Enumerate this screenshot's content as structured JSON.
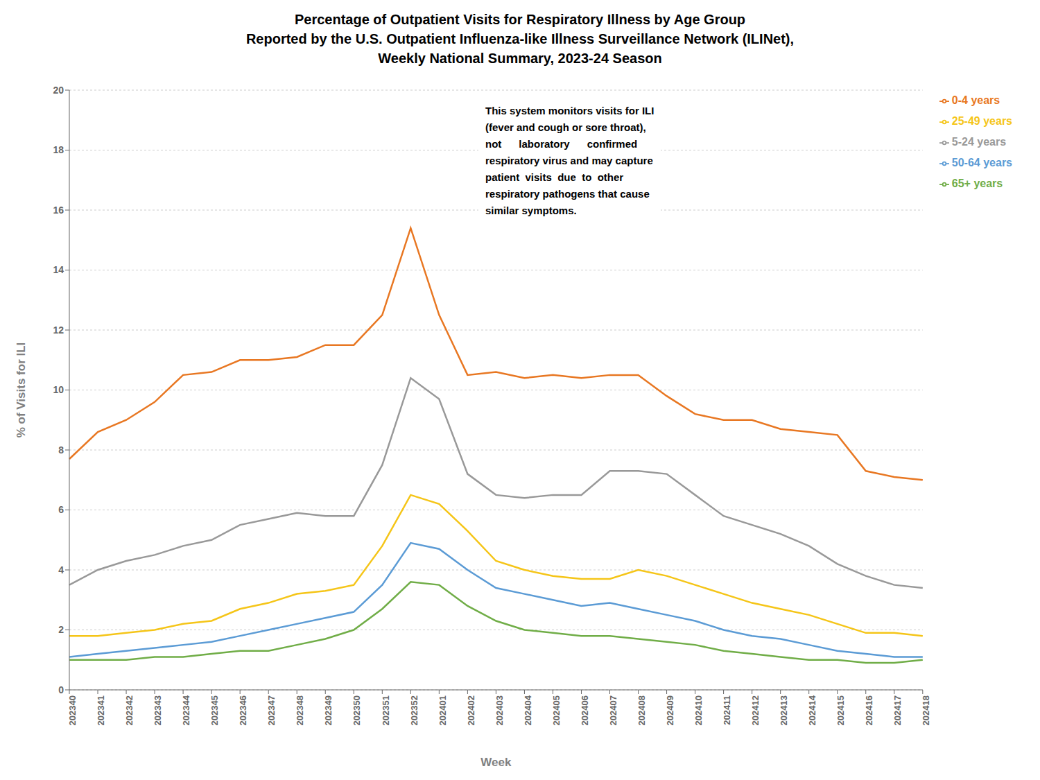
{
  "chart_data": {
    "type": "line",
    "title": [
      "Percentage of Outpatient Visits for Respiratory Illness by Age Group",
      "Reported by the U.S. Outpatient Influenza-like Illness Surveillance Network (ILINet),",
      "Weekly National Summary, 2023-24 Season"
    ],
    "xlabel": "Week",
    "ylabel": "% of Visits for ILI",
    "categories": [
      "202340",
      "202341",
      "202342",
      "202343",
      "202344",
      "202345",
      "202346",
      "202347",
      "202348",
      "202349",
      "202350",
      "202351",
      "202352",
      "202401",
      "202402",
      "202403",
      "202404",
      "202405",
      "202406",
      "202407",
      "202408",
      "202409",
      "202410",
      "202411",
      "202412",
      "202413",
      "202414",
      "202415",
      "202416",
      "202417",
      "202418"
    ],
    "series": [
      {
        "name": "0-4 years",
        "color": "#E87722",
        "values": [
          7.7,
          8.6,
          9.0,
          9.6,
          10.5,
          10.6,
          11.0,
          11.0,
          11.1,
          11.5,
          11.5,
          12.5,
          15.4,
          12.5,
          10.5,
          10.6,
          10.4,
          10.5,
          10.4,
          10.5,
          10.5,
          9.8,
          9.2,
          9.0,
          9.0,
          8.7,
          8.6,
          8.5,
          7.3,
          7.1,
          7.0
        ]
      },
      {
        "name": "5-24 years",
        "color": "#999999",
        "values": [
          3.5,
          4.0,
          4.3,
          4.5,
          4.8,
          5.0,
          5.5,
          5.7,
          5.9,
          5.8,
          5.8,
          7.5,
          10.4,
          9.7,
          7.2,
          6.5,
          6.4,
          6.5,
          6.5,
          7.3,
          7.3,
          7.2,
          6.5,
          5.8,
          5.5,
          5.2,
          4.8,
          4.2,
          3.8,
          3.5,
          3.4
        ]
      },
      {
        "name": "25-49 years",
        "color": "#F5C518",
        "values": [
          1.8,
          1.8,
          1.9,
          2.0,
          2.2,
          2.3,
          2.7,
          2.9,
          3.2,
          3.3,
          3.5,
          4.8,
          6.5,
          6.2,
          5.3,
          4.3,
          4.0,
          3.8,
          3.7,
          3.7,
          4.0,
          3.8,
          3.5,
          3.2,
          2.9,
          2.7,
          2.5,
          2.2,
          1.9,
          1.9,
          1.8
        ]
      },
      {
        "name": "50-64 years",
        "color": "#5B9BD5",
        "values": [
          1.1,
          1.2,
          1.3,
          1.4,
          1.5,
          1.6,
          1.8,
          2.0,
          2.2,
          2.4,
          2.6,
          3.5,
          4.9,
          4.7,
          4.0,
          3.4,
          3.2,
          3.0,
          2.8,
          2.9,
          2.7,
          2.5,
          2.3,
          2.0,
          1.8,
          1.7,
          1.5,
          1.3,
          1.2,
          1.1,
          1.1
        ]
      },
      {
        "name": "65+ years",
        "color": "#70AD47",
        "values": [
          1.0,
          1.0,
          1.0,
          1.1,
          1.1,
          1.2,
          1.3,
          1.3,
          1.5,
          1.7,
          2.0,
          2.7,
          3.6,
          3.5,
          2.8,
          2.3,
          2.0,
          1.9,
          1.8,
          1.8,
          1.7,
          1.6,
          1.5,
          1.3,
          1.2,
          1.1,
          1.0,
          1.0,
          0.9,
          0.9,
          1.0
        ]
      }
    ],
    "ylim": [
      0,
      20
    ],
    "yticks": [
      0,
      2,
      4,
      6,
      8,
      10,
      12,
      14,
      16,
      18,
      20
    ],
    "grid": true,
    "legend": "right",
    "annotation": [
      "This system monitors visits for ILI",
      "(fever and cough or sore throat),",
      "not      laboratory      confirmed",
      "respiratory virus and may capture",
      "patient  visits  due  to  other",
      "respiratory pathogens that cause",
      "similar symptoms."
    ]
  }
}
